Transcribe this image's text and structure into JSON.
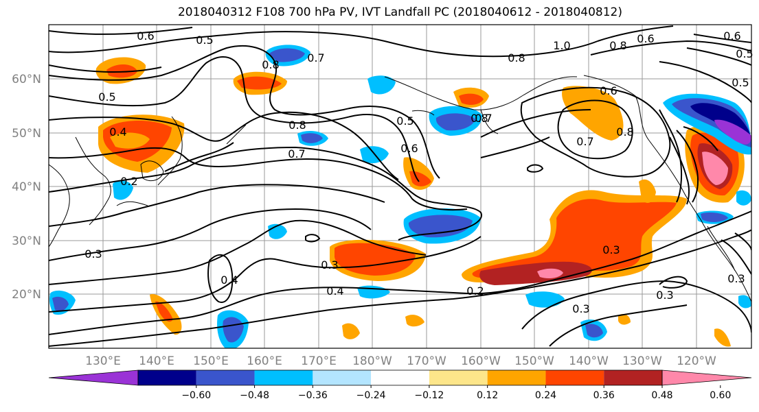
{
  "title": "2018040312 F108 700 hPa PV, IVT Landfall PC (2018040612 - 2018040812)",
  "lon_labels": [
    "130°E",
    "140°E",
    "150°E",
    "160°E",
    "170°E",
    "180°W",
    "170°W",
    "160°W",
    "150°W",
    "140°W",
    "130°W",
    "120°W"
  ],
  "lat_labels": [
    "60°N",
    "50°N",
    "40°N",
    "30°N",
    "20°N"
  ],
  "colorbar": {
    "ticks": [
      "−0.60",
      "−0.48",
      "−0.36",
      "−0.24",
      "−0.12",
      "0.12",
      "0.24",
      "0.36",
      "0.48",
      "0.60"
    ],
    "colors": [
      "#9a33d6",
      "#00008b",
      "#3a55cc",
      "#00bfff",
      "#b3e5ff",
      "#ffffff",
      "#fde68a",
      "#ffa500",
      "#ff4500",
      "#b22222",
      "#ff88aa"
    ]
  },
  "contour_labels": [
    {
      "text": "0.6"
    },
    {
      "text": "0.5"
    },
    {
      "text": "0.5"
    },
    {
      "text": "0.4"
    },
    {
      "text": "0.2"
    },
    {
      "text": "0.8"
    },
    {
      "text": "0.7"
    },
    {
      "text": "0.8"
    },
    {
      "text": "0.7"
    },
    {
      "text": "0.5"
    },
    {
      "text": "0.6"
    },
    {
      "text": "0.7"
    },
    {
      "text": "0.8"
    },
    {
      "text": "1.0"
    },
    {
      "text": "0.8"
    },
    {
      "text": "0.6"
    },
    {
      "text": "0.6"
    },
    {
      "text": "0.5"
    },
    {
      "text": "0.8"
    },
    {
      "text": "0.6"
    },
    {
      "text": "0.7"
    },
    {
      "text": "0.8"
    },
    {
      "text": "0.3"
    },
    {
      "text": "0.4"
    },
    {
      "text": "0.3"
    },
    {
      "text": "0.4"
    },
    {
      "text": "0.2"
    },
    {
      "text": "0.3"
    },
    {
      "text": "0.3"
    },
    {
      "text": "0.3"
    },
    {
      "text": "0.3"
    },
    {
      "text": "0.5"
    }
  ]
}
